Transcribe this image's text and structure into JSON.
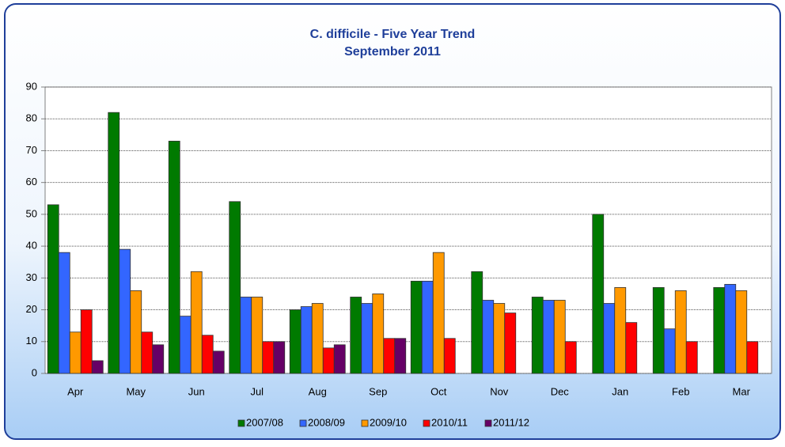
{
  "chart_data": {
    "type": "bar",
    "title": "C. difficile - Five Year Trend",
    "subtitle": "September 2011",
    "categories": [
      "Apr",
      "May",
      "Jun",
      "Jul",
      "Aug",
      "Sep",
      "Oct",
      "Nov",
      "Dec",
      "Jan",
      "Feb",
      "Mar"
    ],
    "series": [
      {
        "name": "2007/08",
        "color": "#007a00",
        "values": [
          53,
          82,
          73,
          54,
          20,
          24,
          29,
          32,
          24,
          50,
          27,
          27
        ]
      },
      {
        "name": "2008/09",
        "color": "#3366ff",
        "values": [
          38,
          39,
          18,
          24,
          21,
          22,
          29,
          23,
          23,
          22,
          14,
          28
        ]
      },
      {
        "name": "2009/10",
        "color": "#ff9900",
        "values": [
          13,
          26,
          32,
          24,
          22,
          25,
          38,
          22,
          23,
          27,
          26,
          26
        ]
      },
      {
        "name": "2010/11",
        "color": "#ff0000",
        "values": [
          20,
          13,
          12,
          10,
          8,
          11,
          11,
          19,
          10,
          16,
          10,
          10
        ]
      },
      {
        "name": "2011/12",
        "color": "#660066",
        "values": [
          4,
          9,
          7,
          10,
          9,
          11,
          null,
          null,
          null,
          null,
          null,
          null
        ]
      }
    ],
    "ylim": [
      0,
      90
    ],
    "yticks": [
      0,
      10,
      20,
      30,
      40,
      50,
      60,
      70,
      80,
      90
    ],
    "grid": true,
    "legend": "bottom"
  }
}
